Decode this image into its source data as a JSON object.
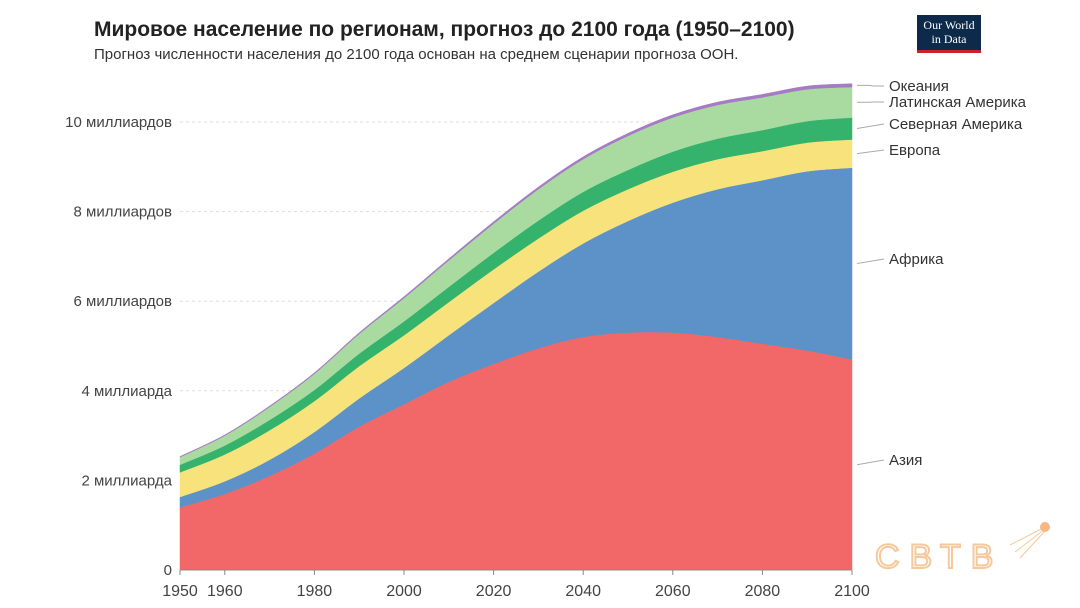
{
  "title": "Мировое население по регионам, прогноз до 2100 года (1950–2100)",
  "subtitle": "Прогноз численности населения до 2100 года основан на среднем сценарии прогноза ООН.",
  "logo": {
    "line1": "Our World",
    "line2": "in Data"
  },
  "watermark": "СВТВ",
  "chart_data": {
    "type": "area",
    "stacked": true,
    "x": [
      1950,
      1960,
      1970,
      1980,
      1990,
      2000,
      2010,
      2020,
      2030,
      2040,
      2050,
      2060,
      2070,
      2080,
      2090,
      2100
    ],
    "ylim": [
      0,
      10.9
    ],
    "y_unit": "billions",
    "yticks": [
      {
        "v": 0,
        "label": "0"
      },
      {
        "v": 2,
        "label": "2 миллиарда"
      },
      {
        "v": 4,
        "label": "4 миллиарда"
      },
      {
        "v": 6,
        "label": "6 миллиардов"
      },
      {
        "v": 8,
        "label": "8 миллиардов"
      },
      {
        "v": 10,
        "label": "10 миллиардов"
      }
    ],
    "xticks": [
      "1950",
      "1960",
      "1980",
      "2000",
      "2020",
      "2040",
      "2060",
      "2080",
      "2100"
    ],
    "grid": "horizontal dashed",
    "legend": "right, inline labels",
    "series": [
      {
        "name": "Азия",
        "color": "#f26868",
        "values": [
          1.4,
          1.7,
          2.1,
          2.6,
          3.2,
          3.7,
          4.2,
          4.6,
          4.95,
          5.2,
          5.3,
          5.3,
          5.2,
          5.05,
          4.9,
          4.7
        ]
      },
      {
        "name": "Африка",
        "color": "#5c92c7",
        "values": [
          0.23,
          0.28,
          0.36,
          0.48,
          0.63,
          0.81,
          1.04,
          1.36,
          1.71,
          2.09,
          2.49,
          2.9,
          3.3,
          3.65,
          4.0,
          4.28
        ]
      },
      {
        "name": "Европа",
        "color": "#f8e27c",
        "values": [
          0.55,
          0.6,
          0.66,
          0.69,
          0.72,
          0.73,
          0.74,
          0.75,
          0.74,
          0.73,
          0.71,
          0.69,
          0.67,
          0.65,
          0.64,
          0.63
        ]
      },
      {
        "name": "Северная Америка",
        "color": "#35b36d",
        "values": [
          0.17,
          0.2,
          0.23,
          0.25,
          0.28,
          0.31,
          0.34,
          0.37,
          0.4,
          0.42,
          0.43,
          0.45,
          0.46,
          0.47,
          0.48,
          0.49
        ]
      },
      {
        "name": "Латинская Америка",
        "color": "#a9dba1",
        "values": [
          0.17,
          0.22,
          0.29,
          0.36,
          0.44,
          0.52,
          0.59,
          0.65,
          0.7,
          0.73,
          0.76,
          0.76,
          0.75,
          0.73,
          0.71,
          0.68
        ]
      },
      {
        "name": "Океания",
        "color": "#a67bc5",
        "values": [
          0.013,
          0.016,
          0.02,
          0.023,
          0.027,
          0.031,
          0.037,
          0.043,
          0.048,
          0.053,
          0.057,
          0.061,
          0.064,
          0.067,
          0.072,
          0.075
        ]
      }
    ]
  }
}
